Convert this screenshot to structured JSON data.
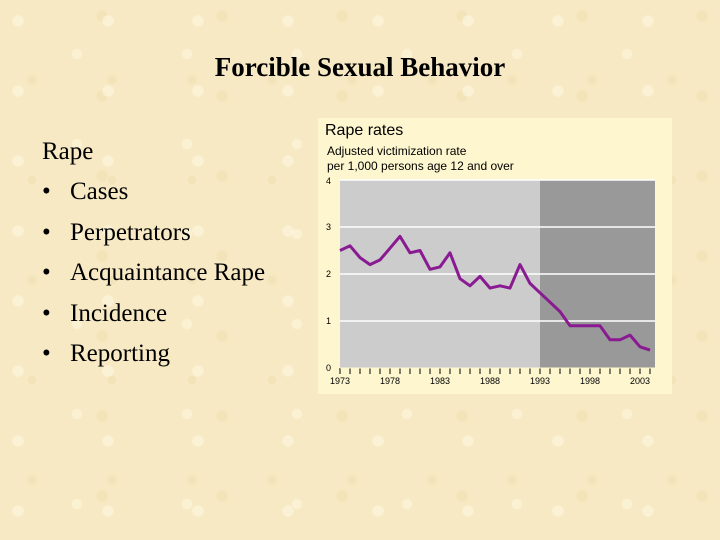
{
  "slide": {
    "title": "Forcible Sexual Behavior",
    "heading": "Rape",
    "bullet_glyph": "•",
    "bullets": [
      "Cases",
      "Perpetrators",
      "Acquaintance Rape",
      "Incidence",
      "Reporting"
    ]
  },
  "chart_data": {
    "type": "line",
    "title": "Rape rates",
    "subtitle_lines": [
      "Adjusted victimization rate",
      "per 1,000 persons age 12 and over"
    ],
    "x": [
      1973,
      1974,
      1975,
      1976,
      1977,
      1978,
      1979,
      1980,
      1981,
      1982,
      1983,
      1984,
      1985,
      1986,
      1987,
      1988,
      1989,
      1990,
      1991,
      1992,
      1993,
      1994,
      1995,
      1996,
      1997,
      1998,
      1999,
      2000,
      2001,
      2002,
      2003,
      2004
    ],
    "series": [
      {
        "values": [
          2.5,
          2.6,
          2.35,
          2.2,
          2.3,
          2.55,
          2.8,
          2.45,
          2.5,
          2.1,
          2.15,
          2.45,
          1.9,
          1.75,
          1.95,
          1.7,
          1.75,
          1.7,
          2.2,
          1.8,
          1.6,
          1.4,
          1.2,
          0.9,
          0.9,
          0.9,
          0.9,
          0.6,
          0.6,
          0.7,
          0.45,
          0.38
        ]
      }
    ],
    "xticks": [
      1973,
      1978,
      1983,
      1988,
      1993,
      1998,
      2003
    ],
    "yticks": [
      0,
      1,
      2,
      3,
      4
    ],
    "xlim": [
      1973,
      2004.5
    ],
    "ylim": [
      0,
      4
    ],
    "grid": true,
    "shaded_region_start": 1993,
    "colors": {
      "line": "#8a1a92",
      "plot_bg": "#cccccc",
      "shaded_bg": "#999999",
      "grid": "#ffffff",
      "panel_bg": "#fdf6cf"
    }
  }
}
